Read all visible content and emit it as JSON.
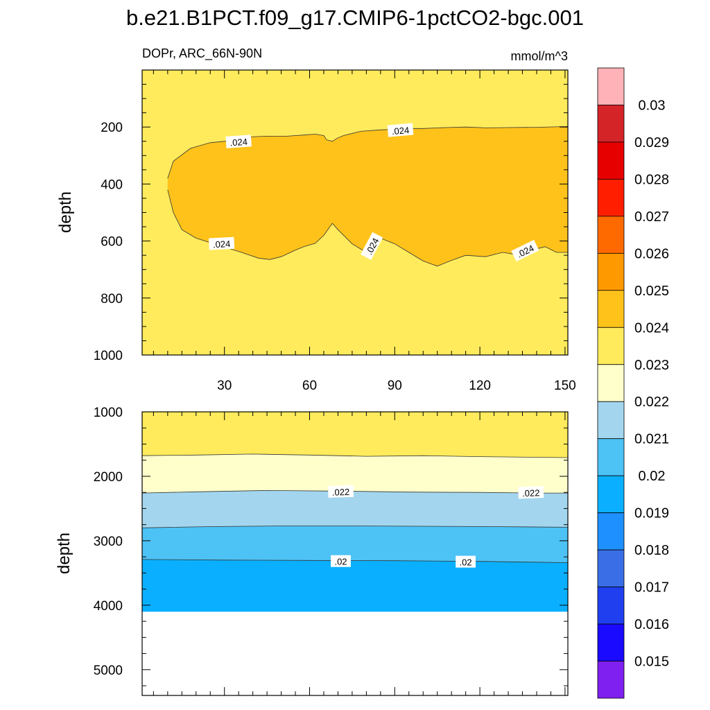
{
  "chart_data": {
    "type": "contour",
    "title": "b.e21.B1PCT.f09_g17.CMIP6-1pctCO2-bgc.001",
    "left_subtitle": "DOPr, ARC_66N-90N",
    "right_subtitle": "mmol/m^3",
    "x": {
      "range": [
        1,
        151
      ],
      "ticks": [
        30,
        60,
        90,
        120,
        150
      ],
      "tick_labels": [
        "30",
        "60",
        "90",
        "120",
        "150"
      ]
    },
    "panels": [
      {
        "name": "upper",
        "ylabel": "depth",
        "ylim": [
          0,
          1000
        ],
        "yticks": [
          200,
          400,
          600,
          800,
          1000
        ],
        "ytick_labels": [
          "200",
          "400",
          "600",
          "800",
          "1000"
        ],
        "background_level": "0.023-0.024",
        "regions": [
          {
            "level": "0.024-0.025",
            "top_boundary": [
              [
                10,
                380
              ],
              [
                12,
                320
              ],
              [
                18,
                275
              ],
              [
                25,
                255
              ],
              [
                30,
                250
              ],
              [
                38,
                235
              ],
              [
                45,
                232
              ],
              [
                52,
                232
              ],
              [
                58,
                228
              ],
              [
                62,
                225
              ],
              [
                65,
                230
              ],
              [
                66,
                245
              ],
              [
                68,
                250
              ],
              [
                70,
                238
              ],
              [
                72,
                230
              ],
              [
                78,
                215
              ],
              [
                85,
                210
              ],
              [
                90,
                208
              ],
              [
                95,
                205
              ],
              [
                100,
                205
              ],
              [
                108,
                202
              ],
              [
                115,
                200
              ],
              [
                122,
                203
              ],
              [
                130,
                202
              ],
              [
                140,
                201
              ],
              [
                151,
                198
              ]
            ],
            "bottom_boundary": [
              [
                151,
                640
              ],
              [
                147,
                640
              ],
              [
                143,
                620
              ],
              [
                138,
                632
              ],
              [
                133,
                648
              ],
              [
                128,
                640
              ],
              [
                122,
                655
              ],
              [
                115,
                650
              ],
              [
                110,
                668
              ],
              [
                105,
                688
              ],
              [
                100,
                670
              ],
              [
                95,
                640
              ],
              [
                90,
                610
              ],
              [
                85,
                590
              ],
              [
                83,
                598
              ],
              [
                80,
                640
              ],
              [
                75,
                610
              ],
              [
                70,
                560
              ],
              [
                68,
                538
              ],
              [
                65,
                580
              ],
              [
                62,
                608
              ],
              [
                58,
                620
              ],
              [
                55,
                632
              ],
              [
                50,
                655
              ],
              [
                46,
                665
              ],
              [
                42,
                660
              ],
              [
                36,
                640
              ],
              [
                28,
                615
              ],
              [
                20,
                590
              ],
              [
                15,
                560
              ],
              [
                12,
                500
              ],
              [
                10,
                420
              ]
            ]
          }
        ],
        "contour_labels": [
          {
            "text": ".024",
            "x": 35,
            "y": 252,
            "angle": -4
          },
          {
            "text": ".024",
            "x": 92,
            "y": 212,
            "angle": -5
          },
          {
            "text": ".024",
            "x": 29,
            "y": 610,
            "angle": -3
          },
          {
            "text": ".024",
            "x": 82,
            "y": 618,
            "angle": -62
          },
          {
            "text": ".024",
            "x": 136,
            "y": 635,
            "angle": -26
          }
        ]
      },
      {
        "name": "lower",
        "ylabel": "depth",
        "ylim": [
          1000,
          5400
        ],
        "yticks": [
          1000,
          2000,
          3000,
          4000,
          5000
        ],
        "ytick_labels": [
          "1000",
          "2000",
          "3000",
          "4000",
          "5000"
        ],
        "data_bottom": 4100,
        "bands": [
          {
            "level": "0.023-0.024",
            "lower_boundary": [
              [
                1,
                1680
              ],
              [
                20,
                1670
              ],
              [
                40,
                1655
              ],
              [
                60,
                1670
              ],
              [
                80,
                1690
              ],
              [
                100,
                1680
              ],
              [
                120,
                1695
              ],
              [
                140,
                1705
              ],
              [
                151,
                1710
              ]
            ]
          },
          {
            "level": "0.022-0.023",
            "lower_boundary": [
              [
                1,
                2260
              ],
              [
                20,
                2240
              ],
              [
                45,
                2220
              ],
              [
                70,
                2230
              ],
              [
                95,
                2245
              ],
              [
                120,
                2250
              ],
              [
                140,
                2260
              ],
              [
                151,
                2260
              ]
            ]
          },
          {
            "level": "0.021-0.022",
            "lower_boundary": [
              [
                1,
                2800
              ],
              [
                25,
                2780
              ],
              [
                50,
                2770
              ],
              [
                75,
                2770
              ],
              [
                100,
                2775
              ],
              [
                125,
                2780
              ],
              [
                151,
                2790
              ]
            ]
          },
          {
            "level": "0.020-0.021",
            "lower_boundary": [
              [
                1,
                3290
              ],
              [
                30,
                3300
              ],
              [
                60,
                3305
              ],
              [
                90,
                3310
              ],
              [
                120,
                3320
              ],
              [
                151,
                3340
              ]
            ]
          },
          {
            "level": "0.019-0.020",
            "lower_boundary": [
              [
                1,
                4100
              ],
              [
                151,
                4100
              ]
            ]
          }
        ],
        "contour_labels": [
          {
            "text": ".022",
            "x": 71,
            "y": 2240,
            "angle": -2
          },
          {
            "text": ".022",
            "x": 138,
            "y": 2255,
            "angle": -2
          },
          {
            "text": ".02",
            "x": 71,
            "y": 3320,
            "angle": 0
          },
          {
            "text": ".02",
            "x": 115,
            "y": 3330,
            "angle": 0
          }
        ]
      }
    ],
    "colorbar": {
      "labels": [
        "0.03",
        "0.029",
        "0.028",
        "0.027",
        "0.026",
        "0.025",
        "0.024",
        "0.023",
        "0.022",
        "0.021",
        "0.02",
        "0.019",
        "0.018",
        "0.017",
        "0.016",
        "0.015"
      ],
      "colors": [
        "#ffb3b8",
        "#d42428",
        "#e60000",
        "#ff1f00",
        "#ff6a00",
        "#ff9900",
        "#ffc21a",
        "#ffeb5c",
        "#ffffcc",
        "#a3d6ee",
        "#4dc2f5",
        "#0ab0ff",
        "#1e90ff",
        "#3a6ee6",
        "#2040f0",
        "#1a0aff",
        "#8020f0"
      ]
    },
    "level_colors": {
      "0.023-0.024": "#ffeb5c",
      "0.024-0.025": "#ffc21a",
      "0.022-0.023": "#ffffcc",
      "0.021-0.022": "#a3d6ee",
      "0.020-0.021": "#4dc2f5",
      "0.019-0.020": "#0ab0ff"
    }
  }
}
